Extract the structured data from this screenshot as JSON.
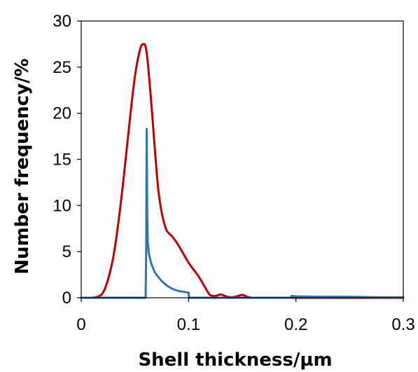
{
  "chart_data": {
    "type": "line",
    "title": "",
    "xlabel": "Shell thickness/µm",
    "ylabel": "Number frequency/%",
    "xlim": [
      0,
      0.3
    ],
    "ylim": [
      0,
      30
    ],
    "x_ticks": [
      0,
      0.1,
      0.2,
      0.3
    ],
    "x_tick_labels": [
      "0",
      "0.1",
      "0.2",
      "0.3"
    ],
    "y_ticks": [
      0,
      5,
      10,
      15,
      20,
      25,
      30
    ],
    "y_tick_labels": [
      "0",
      "5",
      "10",
      "15",
      "20",
      "25",
      "30"
    ],
    "grid": false,
    "legend": "none",
    "series": [
      {
        "color": "#C00000",
        "x": [
          0.01,
          0.015,
          0.02,
          0.025,
          0.03,
          0.035,
          0.04,
          0.045,
          0.05,
          0.055,
          0.058,
          0.06,
          0.062,
          0.065,
          0.068,
          0.07,
          0.072,
          0.075,
          0.078,
          0.08,
          0.085,
          0.09,
          0.095,
          0.1,
          0.105,
          0.11,
          0.115,
          0.12,
          0.125,
          0.13,
          0.135,
          0.14,
          0.145,
          0.15,
          0.155,
          0.16,
          0.18,
          0.2,
          0.22,
          0.25,
          0.28,
          0.3
        ],
        "y": [
          0,
          0.1,
          0.5,
          2.0,
          4.5,
          8.5,
          13.5,
          19.0,
          24.0,
          27.0,
          27.5,
          27.2,
          25.5,
          21.5,
          17.0,
          14.0,
          11.5,
          9.2,
          7.8,
          7.2,
          6.6,
          5.8,
          4.8,
          3.8,
          3.0,
          2.2,
          1.2,
          0.3,
          0.2,
          0.35,
          0.15,
          0.05,
          0.15,
          0.3,
          0.1,
          0,
          0,
          0,
          0,
          0,
          0,
          0
        ]
      },
      {
        "color": "#2E75B6",
        "x": [
          0.0,
          0.06,
          0.0605,
          0.061,
          0.0615,
          0.062,
          0.063,
          0.065,
          0.068,
          0.07,
          0.075,
          0.08,
          0.085,
          0.09,
          0.095,
          0.1,
          0.1005,
          0.12,
          0.15,
          0.18,
          0.195,
          0.196,
          0.2,
          0.22,
          0.25,
          0.28,
          0.3
        ],
        "y": [
          0,
          0,
          5.0,
          18.3,
          9.0,
          6.0,
          4.8,
          3.8,
          2.9,
          2.5,
          1.8,
          1.3,
          0.95,
          0.75,
          0.65,
          0.55,
          0,
          0,
          0,
          0,
          0,
          0.2,
          0.15,
          0.1,
          0.1,
          0.05,
          0.05
        ]
      }
    ]
  }
}
